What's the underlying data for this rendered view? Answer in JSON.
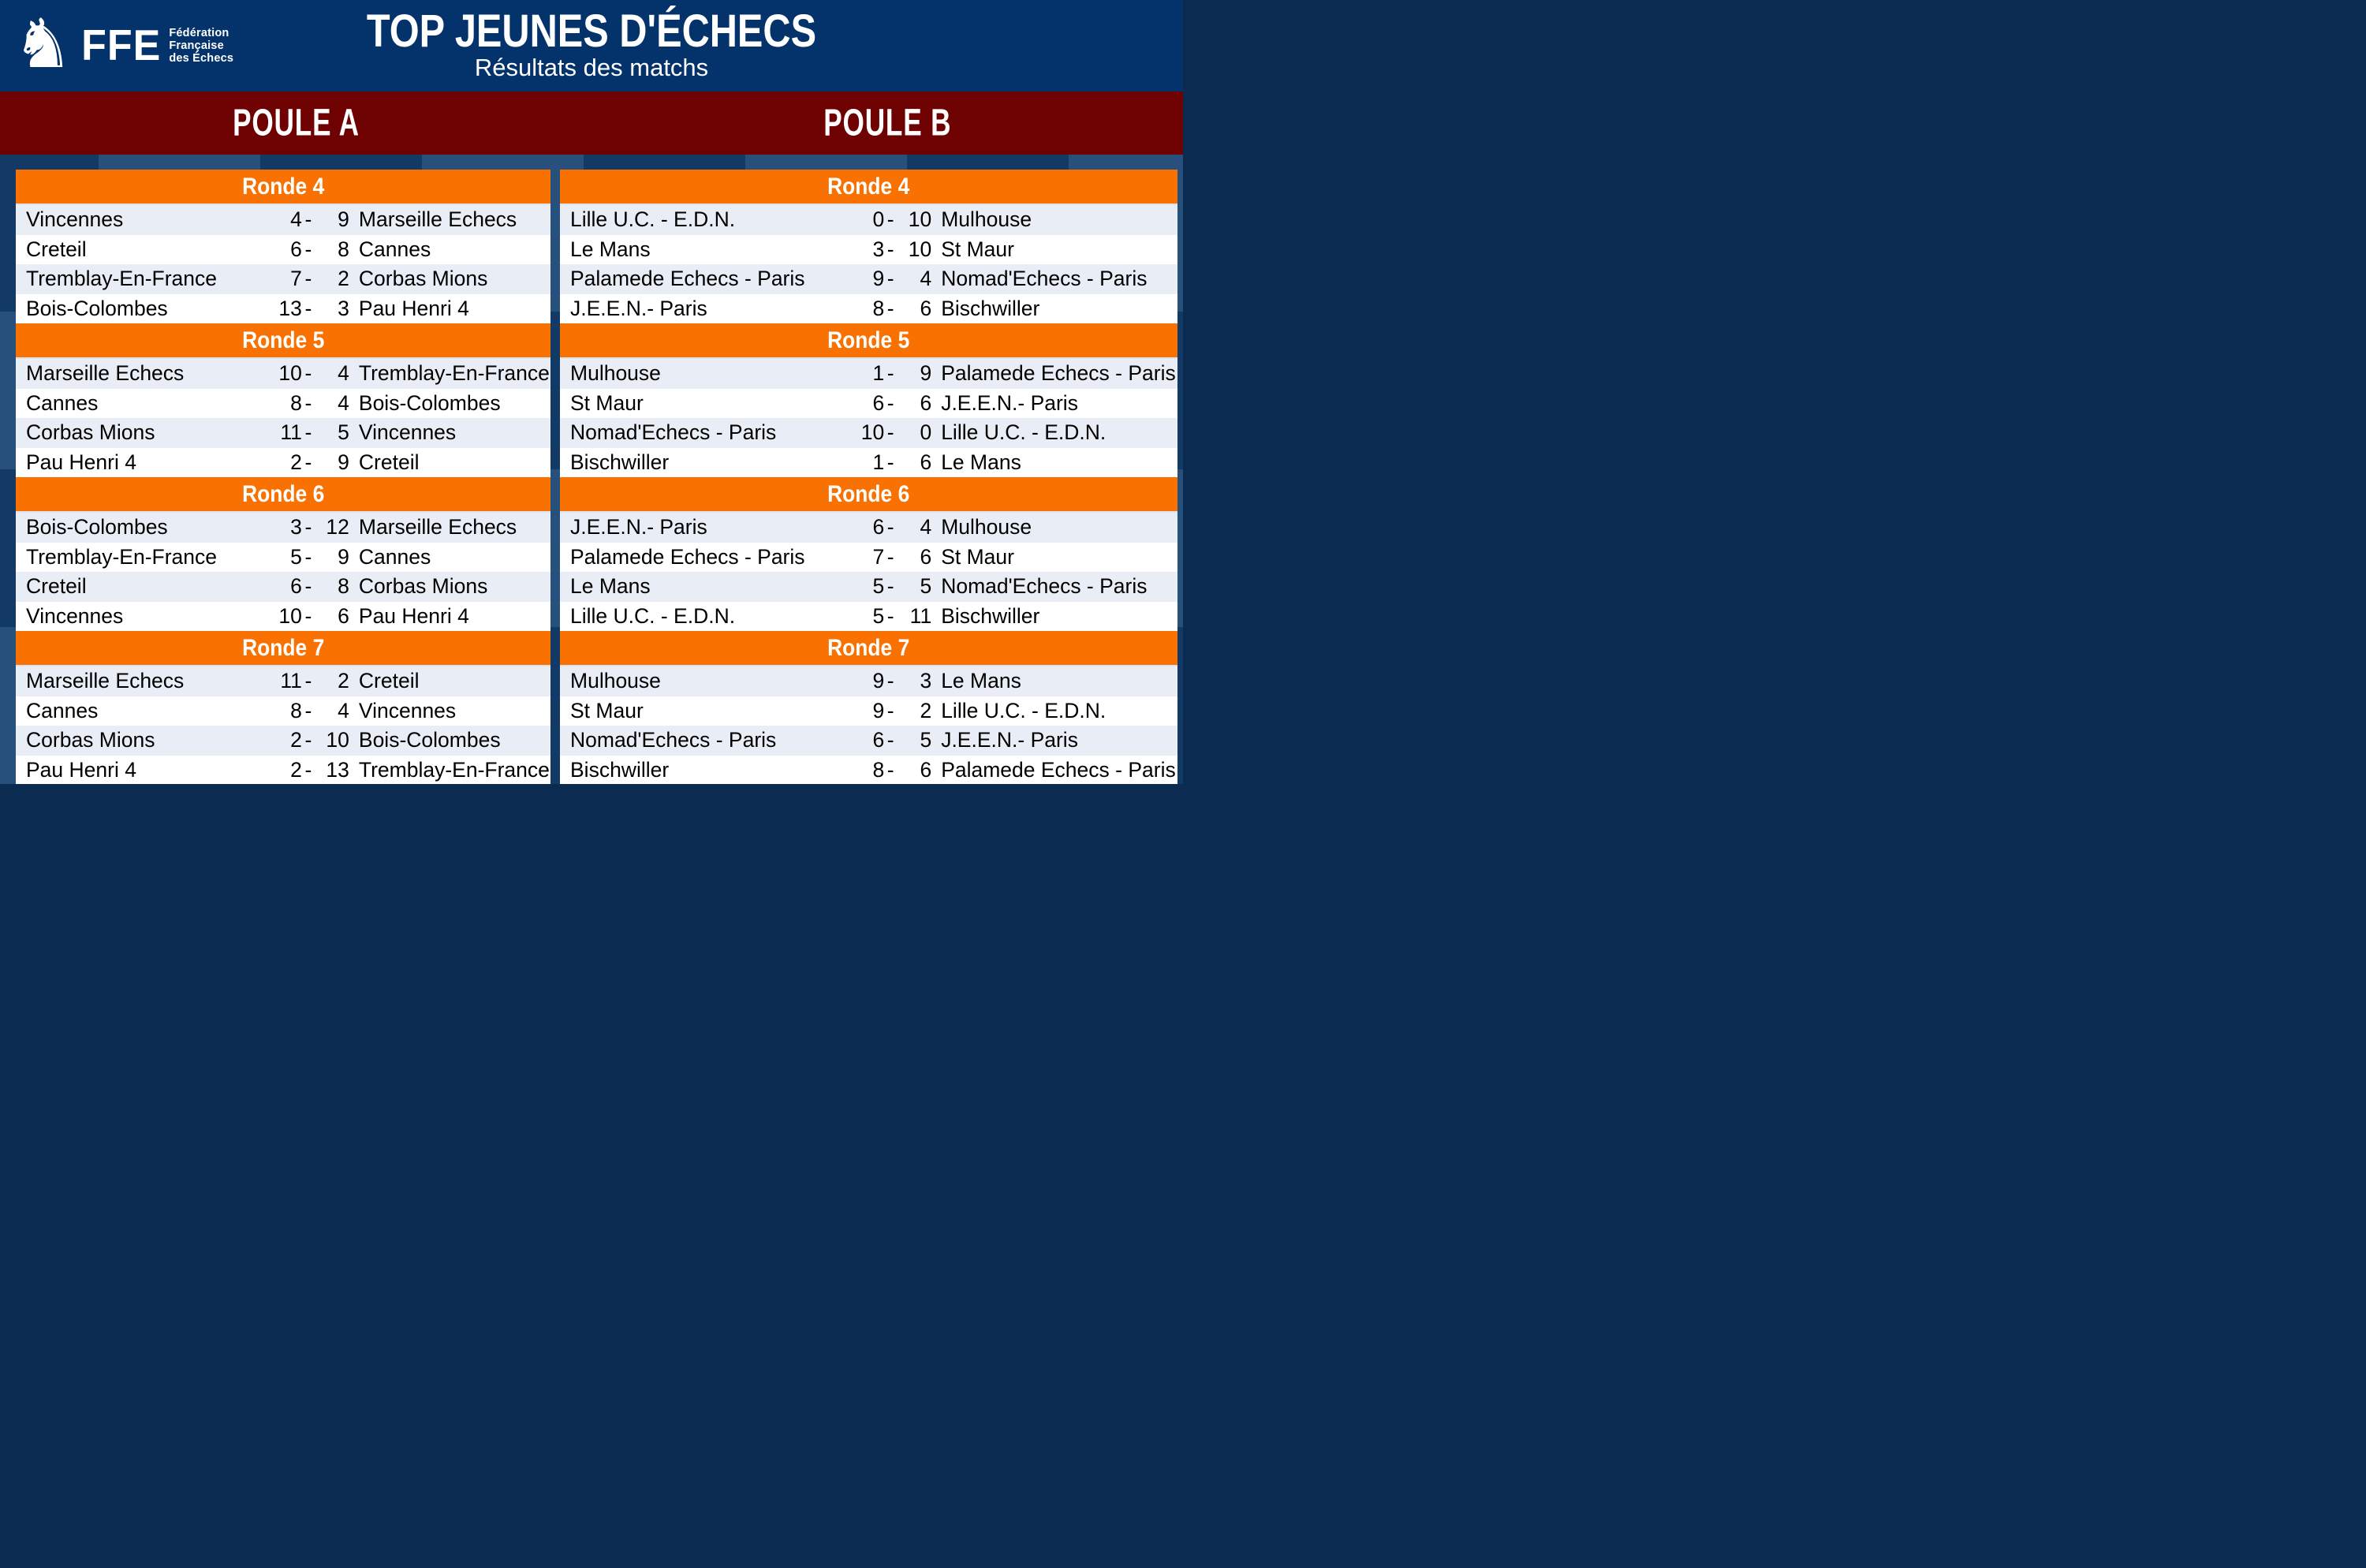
{
  "header": {
    "title": "TOP JEUNES D'ÉCHECS",
    "subtitle": "Résultats des matchs",
    "logo": {
      "acronym": "FFE",
      "org_line_1": "Fédération",
      "org_line_2": "Française",
      "org_line_3": "des Échecs",
      "mark": "knight-rooster"
    }
  },
  "score_separator": "-",
  "colors": {
    "header_navy": "#04336b",
    "band_maroon": "#6e0101",
    "round_orange": "#f97100",
    "row_light": "#e9edf5",
    "row_white": "#ffffff",
    "bg_dark": "#133a67",
    "bg_medium": "#27517c"
  },
  "pools": [
    {
      "name": "POULE A",
      "rounds": [
        {
          "label": "Ronde 4",
          "matches": [
            {
              "home": "Vincennes",
              "home_score": "4",
              "away_score": "9",
              "away": "Marseille Echecs"
            },
            {
              "home": "Creteil",
              "home_score": "6",
              "away_score": "8",
              "away": "Cannes"
            },
            {
              "home": "Tremblay-En-France",
              "home_score": "7",
              "away_score": "2",
              "away": "Corbas Mions"
            },
            {
              "home": "Bois-Colombes",
              "home_score": "13",
              "away_score": "3",
              "away": "Pau Henri 4"
            }
          ]
        },
        {
          "label": "Ronde 5",
          "matches": [
            {
              "home": "Marseille Echecs",
              "home_score": "10",
              "away_score": "4",
              "away": "Tremblay-En-France"
            },
            {
              "home": "Cannes",
              "home_score": "8",
              "away_score": "4",
              "away": "Bois-Colombes"
            },
            {
              "home": "Corbas Mions",
              "home_score": "11",
              "away_score": "5",
              "away": "Vincennes"
            },
            {
              "home": "Pau Henri 4",
              "home_score": "2",
              "away_score": "9",
              "away": "Creteil"
            }
          ]
        },
        {
          "label": "Ronde 6",
          "matches": [
            {
              "home": "Bois-Colombes",
              "home_score": "3",
              "away_score": "12",
              "away": "Marseille Echecs"
            },
            {
              "home": "Tremblay-En-France",
              "home_score": "5",
              "away_score": "9",
              "away": "Cannes"
            },
            {
              "home": "Creteil",
              "home_score": "6",
              "away_score": "8",
              "away": "Corbas Mions"
            },
            {
              "home": "Vincennes",
              "home_score": "10",
              "away_score": "6",
              "away": "Pau Henri 4"
            }
          ]
        },
        {
          "label": "Ronde 7",
          "matches": [
            {
              "home": "Marseille Echecs",
              "home_score": "11",
              "away_score": "2",
              "away": "Creteil"
            },
            {
              "home": "Cannes",
              "home_score": "8",
              "away_score": "4",
              "away": "Vincennes"
            },
            {
              "home": "Corbas Mions",
              "home_score": "2",
              "away_score": "10",
              "away": "Bois-Colombes"
            },
            {
              "home": "Pau Henri 4",
              "home_score": "2",
              "away_score": "13",
              "away": "Tremblay-En-France"
            }
          ]
        }
      ]
    },
    {
      "name": "POULE B",
      "rounds": [
        {
          "label": "Ronde 4",
          "matches": [
            {
              "home": "Lille U.C. - E.D.N.",
              "home_score": "0",
              "away_score": "10",
              "away": "Mulhouse"
            },
            {
              "home": "Le Mans",
              "home_score": "3",
              "away_score": "10",
              "away": "St Maur"
            },
            {
              "home": "Palamede Echecs - Paris",
              "home_score": "9",
              "away_score": "4",
              "away": "Nomad'Echecs - Paris"
            },
            {
              "home": "J.E.E.N.- Paris",
              "home_score": "8",
              "away_score": "6",
              "away": "Bischwiller"
            }
          ]
        },
        {
          "label": "Ronde 5",
          "matches": [
            {
              "home": "Mulhouse",
              "home_score": "1",
              "away_score": "9",
              "away": "Palamede Echecs - Paris"
            },
            {
              "home": "St Maur",
              "home_score": "6",
              "away_score": "6",
              "away": "J.E.E.N.- Paris"
            },
            {
              "home": "Nomad'Echecs - Paris",
              "home_score": "10",
              "away_score": "0",
              "away": "Lille U.C. - E.D.N."
            },
            {
              "home": "Bischwiller",
              "home_score": "1",
              "away_score": "6",
              "away": "Le Mans"
            }
          ]
        },
        {
          "label": "Ronde 6",
          "matches": [
            {
              "home": "J.E.E.N.- Paris",
              "home_score": "6",
              "away_score": "4",
              "away": "Mulhouse"
            },
            {
              "home": "Palamede Echecs - Paris",
              "home_score": "7",
              "away_score": "6",
              "away": "St Maur"
            },
            {
              "home": "Le Mans",
              "home_score": "5",
              "away_score": "5",
              "away": "Nomad'Echecs - Paris"
            },
            {
              "home": "Lille U.C. - E.D.N.",
              "home_score": "5",
              "away_score": "11",
              "away": "Bischwiller"
            }
          ]
        },
        {
          "label": "Ronde 7",
          "matches": [
            {
              "home": "Mulhouse",
              "home_score": "9",
              "away_score": "3",
              "away": "Le Mans"
            },
            {
              "home": "St Maur",
              "home_score": "9",
              "away_score": "2",
              "away": "Lille U.C. - E.D.N."
            },
            {
              "home": "Nomad'Echecs - Paris",
              "home_score": "6",
              "away_score": "5",
              "away": "J.E.E.N.- Paris"
            },
            {
              "home": "Bischwiller",
              "home_score": "8",
              "away_score": "6",
              "away": "Palamede Echecs - Paris"
            }
          ]
        }
      ]
    }
  ]
}
